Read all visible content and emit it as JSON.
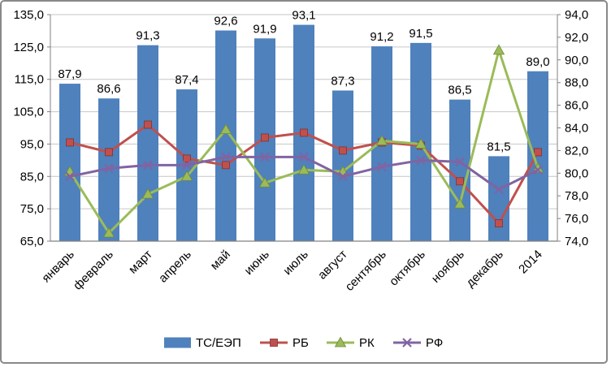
{
  "chart_data": {
    "type": "combo-bar-line",
    "categories": [
      "январь",
      "февраль",
      "март",
      "апрель",
      "май",
      "июнь",
      "июль",
      "август",
      "сентябрь",
      "октябрь",
      "ноябрь",
      "декабрь",
      "2014"
    ],
    "bar_series": {
      "name": "ТС/ЕЭП",
      "axis": "right",
      "color": "#4F81BD",
      "values": [
        87.9,
        86.6,
        91.3,
        87.4,
        92.6,
        91.9,
        93.1,
        87.3,
        91.2,
        91.5,
        86.5,
        81.5,
        89.0
      ],
      "labels": [
        "87,9",
        "86,6",
        "91,3",
        "87,4",
        "92,6",
        "91,9",
        "93,1",
        "87,3",
        "91,2",
        "91,5",
        "86,5",
        "81,5",
        "89,0"
      ]
    },
    "line_series": [
      {
        "name": "РБ",
        "axis": "left",
        "color": "#C0504D",
        "marker": "square",
        "values": [
          95.5,
          92.5,
          101.0,
          90.5,
          88.5,
          97.0,
          98.5,
          93.0,
          95.5,
          94.5,
          83.5,
          70.5,
          92.5
        ]
      },
      {
        "name": "РК",
        "axis": "left",
        "color": "#9BBB59",
        "marker": "triangle",
        "values": [
          86.5,
          67.5,
          79.5,
          85.0,
          99.5,
          83.0,
          87.0,
          86.5,
          96.0,
          95.0,
          76.5,
          124.0,
          87.5
        ]
      },
      {
        "name": "РФ",
        "axis": "left",
        "color": "#8064A2",
        "marker": "x",
        "values": [
          85.0,
          87.5,
          88.5,
          88.5,
          91.0,
          91.0,
          91.0,
          85.0,
          88.0,
          90.0,
          89.5,
          81.0,
          87.0
        ]
      }
    ],
    "left_axis": {
      "min": 65,
      "max": 135,
      "step": 10,
      "tick_labels": [
        "65,0",
        "75,0",
        "85,0",
        "95,0",
        "105,0",
        "115,0",
        "125,0",
        "135,0"
      ]
    },
    "right_axis": {
      "min": 74,
      "max": 94,
      "step": 2,
      "tick_labels": [
        "74,0",
        "76,0",
        "78,0",
        "80,0",
        "82,0",
        "84,0",
        "86,0",
        "88,0",
        "90,0",
        "92,0",
        "94,0"
      ]
    },
    "grid": true,
    "legend_position": "bottom",
    "legend_items": [
      "ТС/ЕЭП",
      "РБ",
      "РК",
      "РФ"
    ],
    "colors": {
      "bar": "#4F81BD",
      "rb": "#C0504D",
      "rk": "#9BBB59",
      "rf": "#8064A2",
      "gridline": "#C6C6C6",
      "axis": "#808080"
    }
  }
}
